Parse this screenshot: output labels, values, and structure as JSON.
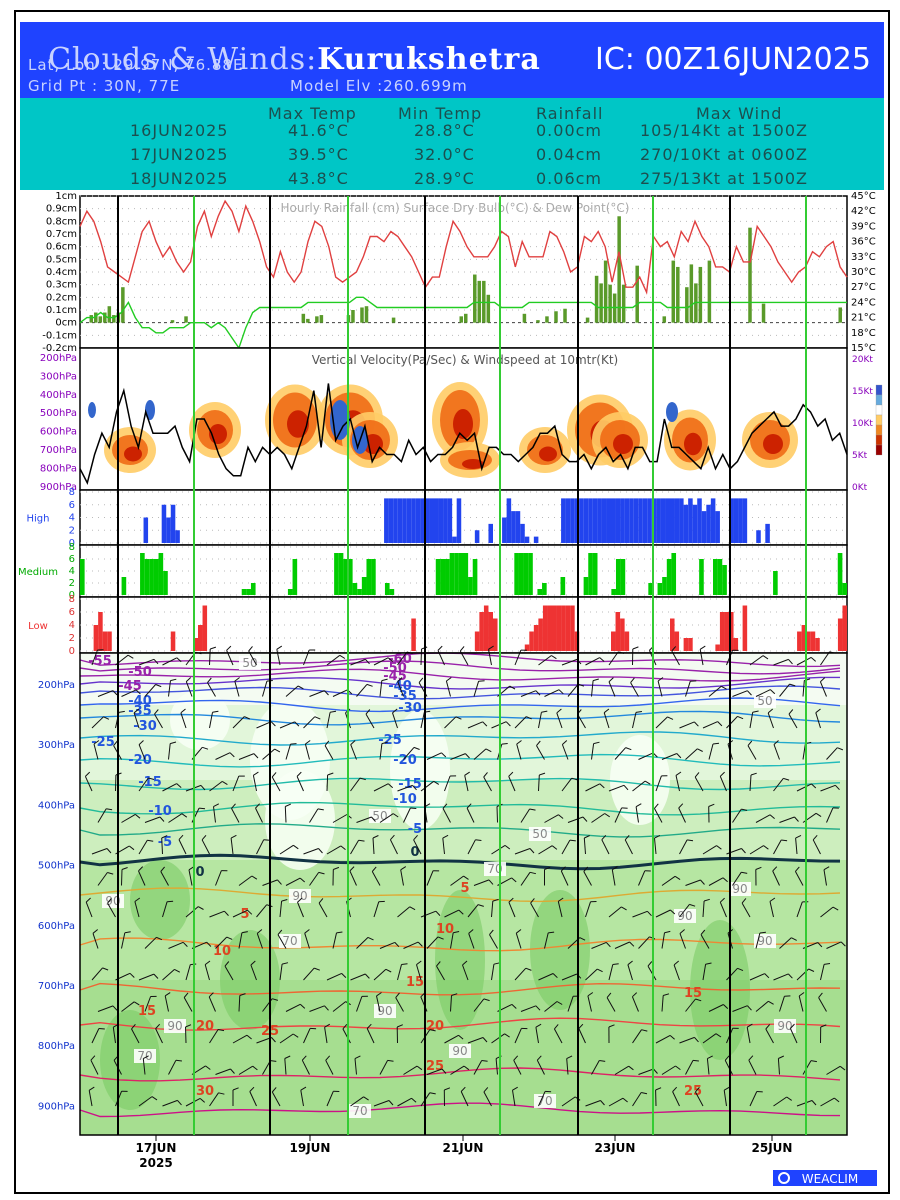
{
  "header": {
    "title_prefix": "Clouds & Winds:",
    "location": "Kurukshetra",
    "ic": "IC: 00Z16JUN2025",
    "latlon": "Lat, Lon : 29.97N, 76.88E",
    "gridpt": "Grid Pt  : 30N, 77E",
    "model_elv": "Model Elv :260.699m"
  },
  "summary": {
    "columns": [
      "Max Temp",
      "Min Temp",
      "Rainfall",
      "Max Wind"
    ],
    "rows": [
      {
        "date": "16JUN2025",
        "max": "41.6°C",
        "min": "28.8°C",
        "rain": "0.00cm",
        "wind": "105/14Kt at 1500Z"
      },
      {
        "date": "17JUN2025",
        "max": "39.5°C",
        "min": "32.0°C",
        "rain": "0.04cm",
        "wind": "270/10Kt at 0600Z"
      },
      {
        "date": "18JUN2025",
        "max": "43.8°C",
        "min": "28.9°C",
        "rain": "0.06cm",
        "wind": "275/13Kt at 1500Z"
      }
    ]
  },
  "chart_data": [
    {
      "type": "line",
      "title": "Hourly Rainfall (cm)   Surface Dry Bulb(°C)   & Dew Point(°C)",
      "left_ticks": [
        "1cm",
        "0.9cm",
        "0.8cm",
        "0.7cm",
        "0.6cm",
        "0.5cm",
        "0.4cm",
        "0.3cm",
        "0.2cm",
        "0.1cm",
        "0cm",
        "-0.1cm",
        "-0.2cm"
      ],
      "right_ticks": [
        "45°C",
        "42°C",
        "39°C",
        "36°C",
        "33°C",
        "30°C",
        "27°C",
        "24°C",
        "21°C",
        "18°C",
        "15°C"
      ],
      "ylim_rain": [
        -0.2,
        1.0
      ],
      "ylim_temp": [
        15,
        45
      ],
      "series": [
        {
          "name": "Surface Dry Bulb(°C)",
          "color": "#e04040",
          "values": [
            39,
            42,
            40,
            36,
            31,
            30,
            29,
            28,
            33,
            38,
            40,
            36,
            33,
            35,
            32,
            30,
            32,
            39,
            42,
            37,
            41,
            44,
            42,
            38,
            43,
            40,
            36,
            31,
            29,
            34,
            30,
            28,
            30,
            36,
            40,
            39,
            35,
            29,
            28,
            29,
            30,
            33,
            37,
            37,
            36,
            38,
            37,
            35,
            33,
            30,
            27,
            29,
            29,
            35,
            40,
            38,
            35,
            33,
            33,
            33,
            35,
            38,
            37,
            31,
            36,
            33,
            33,
            33,
            38,
            37,
            34,
            30,
            31,
            37,
            36,
            38,
            35,
            28,
            34,
            27,
            27,
            29,
            26,
            37,
            35,
            36,
            33,
            38,
            36,
            40,
            37,
            35,
            31,
            31,
            30,
            35,
            32,
            32,
            39,
            37,
            35,
            32,
            30,
            28,
            30,
            31,
            34,
            33,
            35,
            36,
            31,
            29
          ]
        },
        {
          "name": "Dew Point(°C)",
          "color": "#22cc22",
          "values": [
            20,
            21,
            21,
            22,
            21,
            21,
            22,
            24,
            21,
            19,
            19,
            18,
            18,
            19,
            19,
            19,
            20,
            20,
            20,
            19,
            20,
            19,
            17,
            15,
            19,
            22,
            23,
            23,
            23,
            23,
            23,
            23,
            23,
            24,
            24,
            24,
            24,
            24,
            24,
            24,
            25,
            25,
            24,
            23,
            23,
            23,
            23,
            23,
            23,
            23,
            23,
            23,
            23,
            23,
            23,
            23,
            23,
            24,
            24,
            24,
            24,
            23,
            23,
            23,
            23,
            24,
            24,
            24,
            24,
            24,
            24,
            24,
            24,
            24,
            24,
            23,
            23,
            23,
            23,
            23,
            23,
            24,
            24,
            24,
            24,
            23,
            23,
            23,
            23,
            24,
            24,
            24,
            24,
            24,
            24,
            24,
            24,
            24,
            24,
            24,
            24,
            24,
            24,
            24,
            24,
            24,
            24,
            24,
            24,
            24,
            24,
            24
          ]
        },
        {
          "name": "Hourly Rainfall (cm)",
          "color": "#5a9a2a",
          "values": [
            0,
            0,
            0.06,
            0.08,
            0.05,
            0.08,
            0.13,
            0.06,
            0.08,
            0.28,
            0,
            0,
            0,
            0,
            0,
            0,
            0,
            0,
            0,
            0,
            0.02,
            0,
            0,
            0.05,
            0,
            0,
            0,
            0,
            0,
            0,
            0,
            0,
            0,
            0,
            0,
            0,
            0,
            0,
            0,
            0,
            0,
            0,
            0,
            0,
            0,
            0,
            0,
            0,
            0,
            0.07,
            0.03,
            0,
            0.05,
            0.06,
            0,
            0,
            0,
            0,
            0,
            0.06,
            0.1,
            0,
            0.12,
            0.13,
            0,
            0,
            0,
            0,
            0,
            0.04,
            0,
            0,
            0,
            0,
            0,
            0,
            0,
            0,
            0,
            0,
            0,
            0,
            0,
            0,
            0.05,
            0.07,
            0,
            0.38,
            0.33,
            0.33,
            0.22,
            0,
            0,
            0,
            0,
            0,
            0,
            0,
            0.07,
            0,
            0,
            0.02,
            0,
            0.05,
            0,
            0.09,
            0,
            0.11,
            0,
            0,
            0,
            0,
            0.04,
            0,
            0.37,
            0.31,
            0.49,
            0.3,
            0.23,
            0.84,
            0.3,
            0,
            0,
            0.45,
            0,
            0,
            0,
            0,
            0,
            0.05,
            0,
            0.49,
            0.44,
            0,
            0.28,
            0.46,
            0.31,
            0.44,
            0,
            0.49,
            0,
            0,
            0,
            0,
            0,
            0,
            0,
            0,
            0.75,
            0,
            0,
            0.15,
            0,
            0,
            0,
            0,
            0,
            0,
            0,
            0,
            0,
            0,
            0,
            0,
            0,
            0,
            0,
            0,
            0.12,
            0
          ]
        }
      ]
    },
    {
      "type": "heatmap",
      "title": "Vertical Velocity(Pa/Sec) & Windspeed at 10mtr(Kt)",
      "y_ticks": [
        "200hPa",
        "300hPa",
        "400hPa",
        "500hPa",
        "600hPa",
        "700hPa",
        "800hPa",
        "900hPa"
      ],
      "right_ticks": [
        "20Kt",
        "15Kt",
        "10Kt",
        "5Kt",
        "0Kt"
      ],
      "series": [
        {
          "name": "Windspeed at 10mtr(Kt)",
          "color": "#000000",
          "values": [
            3,
            1,
            5,
            8,
            6,
            11,
            14,
            9,
            6,
            11,
            8,
            8,
            8,
            9,
            6,
            4,
            10,
            10,
            8,
            5,
            3,
            2,
            2,
            6,
            4,
            6,
            5,
            6,
            5,
            3,
            6,
            9,
            14,
            6,
            15,
            7,
            9,
            10,
            6,
            9,
            4,
            6,
            5,
            5,
            4,
            7,
            5,
            6,
            4,
            5,
            5,
            6,
            8,
            7,
            8,
            3,
            6,
            6,
            5,
            5,
            4,
            5,
            6,
            8,
            8,
            9,
            5,
            4,
            4,
            5,
            3,
            5,
            6,
            4,
            5,
            3,
            6,
            6,
            4,
            4,
            10,
            6,
            6,
            5,
            4,
            3,
            6,
            3,
            5,
            3,
            4,
            6,
            8,
            9,
            10,
            11,
            9,
            9,
            10,
            12,
            11,
            9,
            10,
            7,
            8,
            5
          ]
        }
      ]
    },
    {
      "type": "bar",
      "title": "",
      "series": [
        {
          "name": "High",
          "color": "#2244ee",
          "values": [
            0,
            0,
            0,
            0,
            0,
            0,
            0,
            0,
            0,
            0,
            0,
            0,
            0,
            0,
            4,
            0,
            0,
            0,
            6,
            4,
            6,
            2,
            0,
            0,
            0,
            0,
            0,
            0,
            0,
            0,
            0,
            0,
            0,
            0,
            0,
            0,
            0,
            0,
            0,
            0,
            0,
            0,
            0,
            0,
            0,
            0,
            0,
            0,
            0,
            0,
            0,
            0,
            0,
            0,
            0,
            0,
            0,
            0,
            0,
            0,
            0,
            0,
            0,
            0,
            0,
            0,
            0,
            7,
            7,
            7,
            7,
            7,
            7,
            7,
            7,
            7,
            7,
            7,
            7,
            7,
            7,
            7,
            1,
            7,
            0,
            0,
            0,
            2,
            0,
            0,
            3,
            0,
            0,
            4,
            7,
            5,
            5,
            3,
            1,
            0,
            1,
            0,
            0,
            0,
            0,
            0,
            7,
            7,
            7,
            7,
            7,
            7,
            7,
            7,
            7,
            7,
            7,
            7,
            7,
            7,
            7,
            7,
            7,
            7,
            7,
            7,
            7,
            7,
            7,
            7,
            7,
            7,
            7,
            6,
            7,
            6,
            7,
            5,
            6,
            7,
            5,
            0,
            0,
            7,
            7,
            7,
            7,
            0,
            0,
            2,
            0,
            3,
            0,
            0,
            0,
            0,
            0,
            0,
            0,
            0,
            0,
            0,
            0,
            0,
            0,
            0,
            0,
            0,
            0
          ]
        },
        {
          "name": "Medium",
          "color": "#00cc00",
          "values": [
            6,
            0,
            0,
            0,
            0,
            0,
            0,
            0,
            0,
            3,
            0,
            0,
            0,
            7,
            6,
            6,
            6,
            7,
            4,
            0,
            0,
            0,
            0,
            0,
            0,
            0,
            0,
            0,
            0,
            0,
            0,
            0,
            0,
            0,
            0,
            1,
            1,
            2,
            0,
            0,
            0,
            0,
            0,
            0,
            0,
            1,
            6,
            0,
            0,
            0,
            0,
            0,
            0,
            0,
            0,
            7,
            7,
            6,
            6,
            2,
            1,
            3,
            6,
            6,
            0,
            0,
            2,
            1,
            0,
            0,
            0,
            0,
            0,
            0,
            0,
            0,
            0,
            6,
            6,
            6,
            7,
            7,
            7,
            7,
            3,
            6,
            0,
            0,
            0,
            0,
            0,
            0,
            0,
            0,
            7,
            7,
            7,
            7,
            0,
            1,
            2,
            0,
            0,
            0,
            3,
            0,
            0,
            0,
            0,
            3,
            7,
            7,
            0,
            0,
            0,
            1,
            6,
            6,
            0,
            0,
            0,
            0,
            0,
            2,
            0,
            2,
            3,
            6,
            7,
            0,
            0,
            0,
            0,
            0,
            6,
            0,
            0,
            6,
            6,
            5,
            0,
            0,
            0,
            0,
            0,
            0,
            0,
            0,
            0,
            0,
            4,
            0,
            0,
            0,
            0,
            0,
            0,
            0,
            0,
            0,
            0,
            0,
            0,
            0,
            7,
            2
          ]
        },
        {
          "name": "Low",
          "color": "#ee3333",
          "values": [
            0,
            0,
            0,
            4,
            6,
            3,
            3,
            0,
            0,
            0,
            0,
            0,
            0,
            0,
            0,
            0,
            0,
            0,
            0,
            0,
            3,
            0,
            0,
            0,
            0,
            2,
            4,
            7,
            0,
            0,
            0,
            0,
            0,
            0,
            0,
            0,
            0,
            0,
            0,
            0,
            0,
            0,
            0,
            0,
            0,
            0,
            0,
            0,
            0,
            0,
            0,
            0,
            0,
            0,
            0,
            0,
            0,
            0,
            0,
            0,
            0,
            0,
            0,
            0,
            0,
            0,
            0,
            0,
            0,
            0,
            0,
            0,
            0,
            5,
            0,
            0,
            0,
            0,
            0,
            0,
            0,
            0,
            0,
            0,
            0,
            0,
            0,
            3,
            6,
            7,
            6,
            5,
            0,
            0,
            0,
            0,
            0,
            0,
            1,
            3,
            4,
            5,
            7,
            7,
            7,
            7,
            7,
            7,
            7,
            3,
            0,
            0,
            0,
            0,
            0,
            0,
            0,
            3,
            6,
            5,
            3,
            0,
            0,
            0,
            0,
            0,
            0,
            0,
            0,
            0,
            5,
            3,
            0,
            2,
            2,
            0,
            0,
            0,
            0,
            0,
            1,
            6,
            6,
            6,
            2,
            0,
            7,
            0,
            0,
            0,
            0,
            0,
            0,
            0,
            0,
            0,
            0,
            0,
            3,
            4,
            3,
            3,
            2,
            0,
            0,
            0,
            0,
            5,
            7
          ]
        }
      ]
    },
    {
      "type": "area",
      "title": "",
      "y_ticks": [
        "200hPa",
        "300hPa",
        "400hPa",
        "500hPa",
        "600hPa",
        "700hPa",
        "800hPa",
        "900hPa"
      ],
      "x_labels": [
        "17JUN\n2025",
        "19JUN",
        "21JUN",
        "23JUN",
        "25JUN"
      ],
      "temperature_labels": [
        "-60",
        "-55",
        "-50",
        "-45",
        "-40",
        "-35",
        "-30",
        "-25",
        "-20",
        "-15",
        "-10",
        "-5",
        "0",
        "5",
        "10",
        "15",
        "20",
        "25",
        "30"
      ],
      "humidity_labels": [
        "50",
        "70",
        "90"
      ]
    }
  ],
  "footer": {
    "brand": "WEACLIM"
  },
  "colors": {
    "header_blue": "#1f43ff",
    "header_cyan": "#00c6c6",
    "day_line": "#33cc33"
  }
}
